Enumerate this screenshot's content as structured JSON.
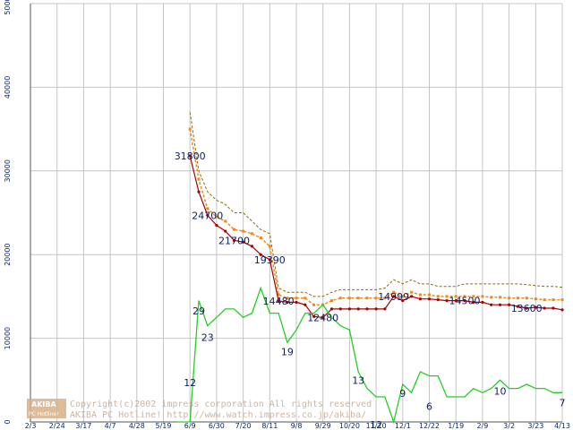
{
  "chart_data": {
    "type": "line",
    "ylim": [
      0,
      50000
    ],
    "y_ticks": [
      "50000",
      "40000",
      "30000",
      "20000",
      "10000",
      "0"
    ],
    "x_ticks": [
      "2/3",
      "2/24",
      "3/17",
      "4/7",
      "4/28",
      "5/19",
      "6/9",
      "6/30",
      "7/20",
      "8/11",
      "9/8",
      "9/29",
      "10/20",
      "11/10",
      "12/1",
      "12/22",
      "1/19",
      "2/9",
      "3/2",
      "3/23",
      "4/13"
    ],
    "grid": true,
    "colors": {
      "price_max": "#8a6a18",
      "price_avg": "#ee8a1c",
      "price_min": "#a80000",
      "shops": "#22d022",
      "grid": "#c4c4c4",
      "tick_text": "#0b2a6b",
      "label_text": "#0b1f66"
    },
    "series": [
      {
        "key": "price_max",
        "x": [
          6.0,
          6.33,
          6.66,
          7.0,
          7.33,
          7.66,
          8.0,
          8.33,
          8.66,
          9.0,
          9.33,
          9.66,
          10.0,
          10.33,
          10.66,
          11.0,
          11.33,
          11.66,
          12.0,
          12.33,
          12.66,
          13.0,
          13.33,
          13.66,
          14.0,
          14.33,
          14.66,
          15.0,
          15.33,
          15.66,
          16.0,
          16.33,
          16.66,
          17.0,
          17.33,
          17.66,
          18.0,
          18.33,
          18.66,
          19.0,
          19.33,
          19.66,
          20.0
        ],
        "values": [
          37000,
          30000,
          27500,
          26500,
          26000,
          25000,
          25000,
          24000,
          23000,
          22500,
          16000,
          15500,
          15500,
          15500,
          15000,
          15000,
          15500,
          15800,
          15800,
          15800,
          15800,
          15800,
          16000,
          17000,
          16500,
          17000,
          16500,
          16500,
          16200,
          16200,
          16200,
          16500,
          16500,
          16500,
          16500,
          16500,
          16500,
          16500,
          16400,
          16300,
          16200,
          16200,
          16100
        ]
      },
      {
        "key": "price_avg",
        "x": [
          6.0,
          6.33,
          6.66,
          7.0,
          7.33,
          7.66,
          8.0,
          8.33,
          8.66,
          9.0,
          9.33,
          9.66,
          10.0,
          10.33,
          10.66,
          11.0,
          11.33,
          11.66,
          12.0,
          12.33,
          12.66,
          13.0,
          13.33,
          13.66,
          14.0,
          14.33,
          14.66,
          15.0,
          15.33,
          15.66,
          16.0,
          16.33,
          16.66,
          17.0,
          17.33,
          17.66,
          18.0,
          18.33,
          18.66,
          19.0,
          19.33,
          19.66,
          20.0
        ],
        "values": [
          35000,
          29000,
          25500,
          24500,
          24000,
          23000,
          22800,
          22500,
          22000,
          21000,
          15200,
          14800,
          14800,
          14800,
          14000,
          14000,
          14500,
          14800,
          14800,
          14800,
          14800,
          14800,
          14800,
          15500,
          15000,
          15500,
          15200,
          15200,
          15000,
          15000,
          15000,
          15000,
          15000,
          15000,
          14900,
          14900,
          14800,
          14800,
          14800,
          14700,
          14600,
          14600,
          14600
        ]
      },
      {
        "key": "price_min",
        "x": [
          6.0,
          6.33,
          6.66,
          7.0,
          7.33,
          7.66,
          8.0,
          8.33,
          8.66,
          9.0,
          9.33,
          9.66,
          10.0,
          10.33,
          10.66,
          11.0,
          11.33,
          11.66,
          12.0,
          12.33,
          12.66,
          13.0,
          13.33,
          13.66,
          14.0,
          14.33,
          14.66,
          15.0,
          15.33,
          15.66,
          16.0,
          16.33,
          16.66,
          17.0,
          17.33,
          17.66,
          18.0,
          18.33,
          18.66,
          19.0,
          19.33,
          19.66,
          20.0
        ],
        "values": [
          31800,
          27500,
          24700,
          23500,
          22800,
          21700,
          21500,
          21000,
          20000,
          19390,
          14480,
          14300,
          14300,
          14000,
          12600,
          12480,
          13500,
          13500,
          13500,
          13500,
          13500,
          13500,
          13500,
          14999,
          14500,
          15000,
          14700,
          14700,
          14600,
          14500,
          14500,
          14500,
          14300,
          14300,
          14000,
          14000,
          14000,
          13800,
          13600,
          13700,
          13600,
          13600,
          13400
        ]
      },
      {
        "key": "shops",
        "x": [
          5.5,
          5.8,
          6.0,
          6.33,
          6.66,
          7.0,
          7.33,
          7.66,
          8.0,
          8.33,
          8.66,
          9.0,
          9.33,
          9.66,
          10.0,
          10.33,
          10.66,
          11.0,
          11.33,
          11.66,
          12.0,
          12.33,
          12.66,
          13.0,
          13.33,
          13.66,
          14.0,
          14.33,
          14.66,
          15.0,
          15.33,
          15.66,
          16.0,
          16.33,
          16.66,
          17.0,
          17.33,
          17.66,
          18.0,
          18.33,
          18.66,
          19.0,
          19.33,
          19.66,
          20.0
        ],
        "values": [
          0,
          2,
          12,
          14500,
          11500,
          12500,
          13500,
          13500,
          12500,
          13000,
          16000,
          13000,
          13000,
          9500,
          11000,
          13000,
          13000,
          14000,
          12500,
          11500,
          11000,
          6000,
          4000,
          3000,
          3000,
          0,
          4500,
          3500,
          6000,
          5500,
          5500,
          3000,
          3000,
          3000,
          4000,
          3500,
          4000,
          5000,
          4000,
          4000,
          4500,
          4000,
          4000,
          3500,
          3500
        ]
      }
    ],
    "data_labels": [
      {
        "text": "31800",
        "x": 6.0,
        "y": 31800,
        "color": "#0b1f66"
      },
      {
        "text": "24700",
        "x": 6.66,
        "y": 24700,
        "color": "#0b1f66"
      },
      {
        "text": "21700",
        "x": 7.66,
        "y": 21700,
        "color": "#0b1f66"
      },
      {
        "text": "19390",
        "x": 9.0,
        "y": 19390,
        "color": "#0b1f66"
      },
      {
        "text": "14480",
        "x": 9.33,
        "y": 14480,
        "color": "#0b1f66"
      },
      {
        "text": "12480",
        "x": 11.0,
        "y": 12480,
        "color": "#0b1f66"
      },
      {
        "text": "14999",
        "x": 13.66,
        "y": 14999,
        "color": "#0b1f66"
      },
      {
        "text": "14500",
        "x": 16.33,
        "y": 14500,
        "color": "#0b1f66"
      },
      {
        "text": "13600",
        "x": 18.66,
        "y": 13600,
        "color": "#0b1f66"
      },
      {
        "text": "29",
        "x": 6.33,
        "y": 13300,
        "color": "#0b1f66"
      },
      {
        "text": "23",
        "x": 6.66,
        "y": 10100,
        "color": "#0b1f66"
      },
      {
        "text": "12",
        "x": 6.0,
        "y": 4700,
        "color": "#0b1f66"
      },
      {
        "text": "19",
        "x": 9.66,
        "y": 8400,
        "color": "#0b1f66"
      },
      {
        "text": "13",
        "x": 12.33,
        "y": 5000,
        "color": "#0b1f66"
      },
      {
        "text": "9",
        "x": 14.0,
        "y": 3400,
        "color": "#0b1f66"
      },
      {
        "text": "6",
        "x": 15.0,
        "y": 1900,
        "color": "#0b1f66"
      },
      {
        "text": "10",
        "x": 17.66,
        "y": 3700,
        "color": "#0b1f66"
      },
      {
        "text": "7",
        "x": 20.0,
        "y": 2300,
        "color": "#0b1f66"
      },
      {
        "text": "12",
        "x": 13.0,
        "y": -300,
        "color": "#0b1f66"
      }
    ]
  },
  "watermark": {
    "logo_top": "AKIBA",
    "logo_bottom": "PC Hotline!",
    "line1": "Copyright(c)2002 impress corporation All rights reserved",
    "line2": "AKIBA PC Hotline! http://www.watch.impress.co.jp/akiba/"
  }
}
